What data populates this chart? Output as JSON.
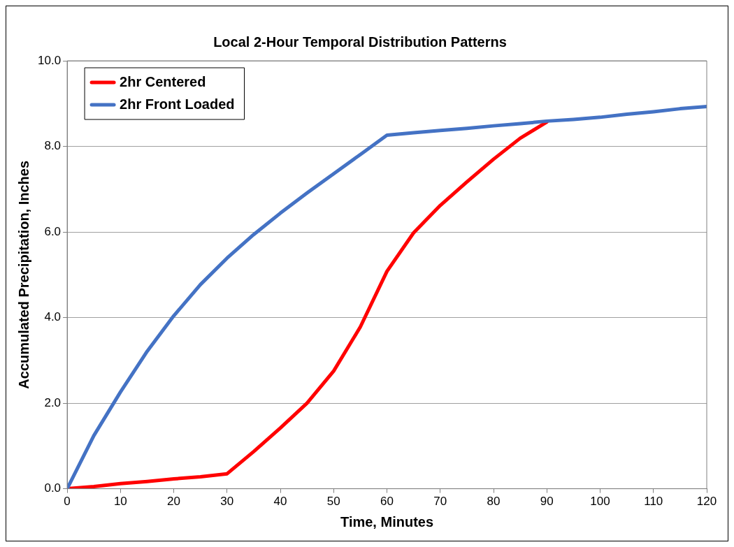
{
  "chart_data": {
    "type": "line",
    "title": "Local 2-Hour Temporal Distribution Patterns",
    "xlabel": "Time, Minutes",
    "ylabel": "Accumulated Precipitation, Inches",
    "x": [
      0,
      5,
      10,
      15,
      20,
      25,
      30,
      35,
      40,
      45,
      50,
      55,
      60,
      65,
      70,
      75,
      80,
      85,
      90,
      95,
      100,
      105,
      110,
      115,
      120
    ],
    "series": [
      {
        "name": "2hr Centered",
        "color": "#ff0000",
        "values": [
          0,
          0.05,
          0.12,
          0.17,
          0.23,
          0.28,
          0.35,
          0.87,
          1.42,
          2.0,
          2.75,
          3.78,
          5.08,
          5.98,
          6.62,
          7.17,
          7.7,
          8.19,
          8.57,
          null,
          null,
          null,
          null,
          null,
          null
        ]
      },
      {
        "name": "2hr Front Loaded",
        "color": "#4472c4",
        "values": [
          0,
          1.24,
          2.26,
          3.21,
          4.04,
          4.77,
          5.39,
          5.94,
          6.44,
          6.91,
          7.36,
          7.81,
          8.26,
          8.32,
          8.37,
          8.42,
          8.48,
          8.53,
          8.59,
          8.63,
          8.68,
          8.75,
          8.81,
          8.88,
          8.93
        ]
      }
    ],
    "xlim": [
      0,
      120
    ],
    "xticks": [
      0,
      10,
      20,
      30,
      40,
      50,
      60,
      70,
      80,
      90,
      100,
      110,
      120
    ],
    "ylim": [
      0,
      10
    ],
    "yticks": [
      {
        "value": 0,
        "label": "0.0"
      },
      {
        "value": 2,
        "label": "2.0"
      },
      {
        "value": 4,
        "label": "4.0"
      },
      {
        "value": 6,
        "label": "6.0"
      },
      {
        "value": 8,
        "label": "8.0"
      },
      {
        "value": 10,
        "label": "10.0"
      }
    ],
    "grid": "y",
    "legend": "top left",
    "marker": "none",
    "line_style": "solid"
  }
}
